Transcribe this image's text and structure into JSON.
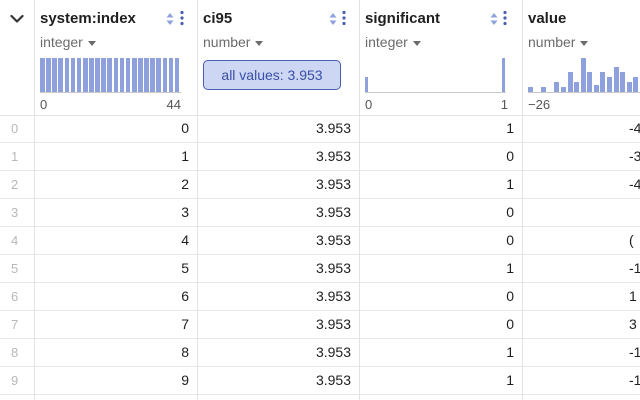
{
  "columns": [
    {
      "name": "system:index",
      "type": "integer",
      "range_min": "0",
      "range_max": "44",
      "histogram": [
        1,
        1,
        1,
        1,
        1,
        1,
        1,
        1,
        1,
        1,
        1,
        1,
        1,
        1,
        1,
        1,
        1,
        1,
        1,
        1,
        1,
        1,
        1
      ]
    },
    {
      "name": "ci95",
      "type": "number",
      "all_values_label": "all values: 3.953"
    },
    {
      "name": "significant",
      "type": "integer",
      "range_min": "0",
      "range_max": "1",
      "histogram": [
        0.45,
        0,
        0,
        0,
        0,
        0,
        0,
        0,
        0,
        0,
        0,
        0,
        0,
        0,
        0,
        0,
        0,
        0,
        0,
        0,
        0,
        0,
        0,
        0,
        0,
        0,
        0,
        0,
        0,
        0,
        0,
        0,
        0,
        0,
        0,
        0,
        0,
        1
      ]
    },
    {
      "name": "value",
      "type": "number",
      "range_min": "−26",
      "histogram": [
        0.15,
        0,
        0.15,
        0,
        0.3,
        0.15,
        0.6,
        0.3,
        1,
        0.6,
        0.2,
        0.6,
        0.45,
        0.75,
        0.6,
        0.3,
        0.45
      ]
    }
  ],
  "rows": [
    {
      "idx": "0",
      "system_index": "0",
      "ci95": "3.953",
      "significant": "1",
      "value": "-4"
    },
    {
      "idx": "1",
      "system_index": "1",
      "ci95": "3.953",
      "significant": "0",
      "value": "-3"
    },
    {
      "idx": "2",
      "system_index": "2",
      "ci95": "3.953",
      "significant": "1",
      "value": "-4"
    },
    {
      "idx": "3",
      "system_index": "3",
      "ci95": "3.953",
      "significant": "0",
      "value": ""
    },
    {
      "idx": "4",
      "system_index": "4",
      "ci95": "3.953",
      "significant": "0",
      "value": "("
    },
    {
      "idx": "5",
      "system_index": "5",
      "ci95": "3.953",
      "significant": "1",
      "value": "-1"
    },
    {
      "idx": "6",
      "system_index": "6",
      "ci95": "3.953",
      "significant": "0",
      "value": "1"
    },
    {
      "idx": "7",
      "system_index": "7",
      "ci95": "3.953",
      "significant": "0",
      "value": "3"
    },
    {
      "idx": "8",
      "system_index": "8",
      "ci95": "3.953",
      "significant": "1",
      "value": "-1"
    },
    {
      "idx": "9",
      "system_index": "9",
      "ci95": "3.953",
      "significant": "1",
      "value": "-1"
    }
  ],
  "colors": {
    "histogram_bar": "#8ea1dd",
    "badge_bg": "#cdd7f3",
    "badge_border": "#4a5fb0",
    "index_text": "#b8b8b8"
  },
  "icons": {
    "collapse": "chevron-down-icon",
    "sort": "sort-arrows-icon",
    "menu": "more-vertical-icon"
  }
}
